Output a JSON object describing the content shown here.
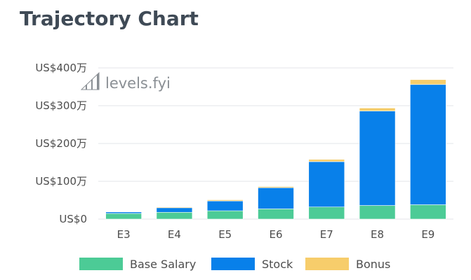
{
  "page_title": "Trajectory Chart",
  "watermark": {
    "text": "levels.fyi",
    "icon": "levels-stairs-icon"
  },
  "colors": {
    "base": "#4ccb96",
    "stock": "#0880ea",
    "bonus": "#f7cd6b",
    "grid": "#e3e6e9"
  },
  "chart_data": {
    "type": "bar",
    "stacked": true,
    "categories": [
      "E3",
      "E4",
      "E5",
      "E6",
      "E7",
      "E8",
      "E9"
    ],
    "series": [
      {
        "name": "Base Salary",
        "values": [
          15,
          18,
          22,
          27,
          32,
          36,
          38
        ]
      },
      {
        "name": "Stock",
        "values": [
          4,
          12,
          26,
          56,
          120,
          250,
          318
        ]
      },
      {
        "name": "Bonus",
        "values": [
          1,
          2,
          3,
          3,
          6,
          8,
          13
        ]
      }
    ],
    "yticks": [
      {
        "value": 0,
        "label": "US$0"
      },
      {
        "value": 100,
        "label": "US$100万"
      },
      {
        "value": 200,
        "label": "US$200万"
      },
      {
        "value": 300,
        "label": "US$300万"
      },
      {
        "value": 400,
        "label": "US$400万"
      }
    ],
    "ylim": [
      0,
      400
    ],
    "grid": true,
    "legend_position": "bottom",
    "title": "",
    "xlabel": "",
    "ylabel": ""
  }
}
